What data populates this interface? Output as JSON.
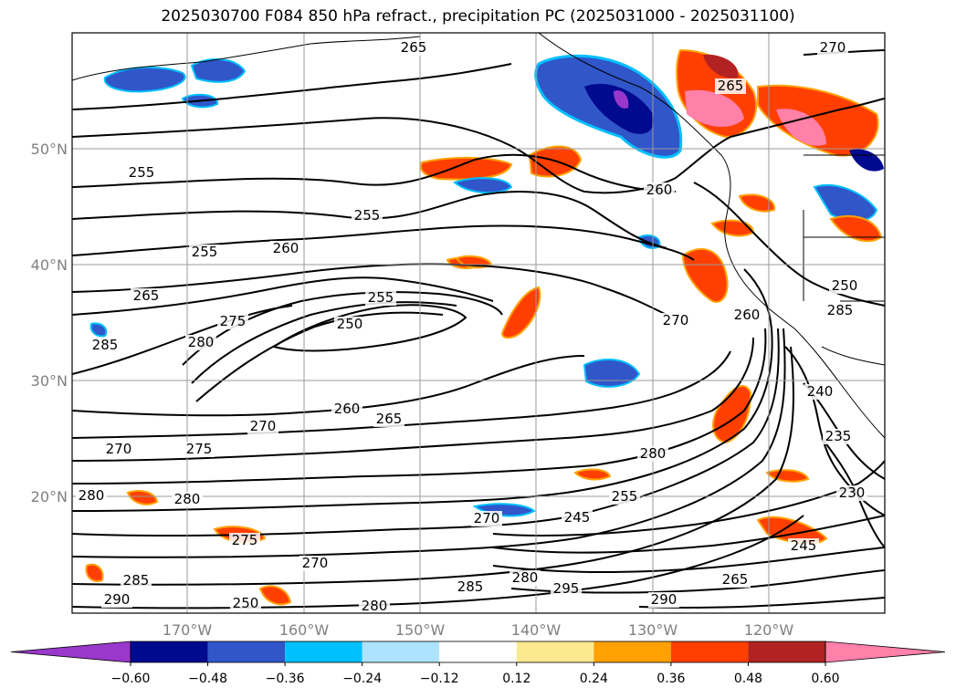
{
  "title": "2025030700 F084 850 hPa refract., precipitation PC (2025031000 - 2025031100)",
  "lat_labels": [
    "50°N",
    "40°N",
    "30°N",
    "20°N"
  ],
  "lon_labels": [
    "170°W",
    "160°W",
    "150°W",
    "140°W",
    "130°W",
    "120°W"
  ],
  "contour_labels": [
    "265",
    "270",
    "265",
    "260",
    "255",
    "255",
    "260",
    "265",
    "255",
    "280",
    "275",
    "250",
    "285",
    "260",
    "265",
    "270",
    "275",
    "270",
    "280",
    "280",
    "280",
    "275",
    "270",
    "245",
    "255",
    "280",
    "285",
    "270",
    "285",
    "295",
    "290",
    "290",
    "265",
    "245",
    "230",
    "235",
    "240",
    "250",
    "260",
    "270",
    "250",
    "280",
    "285",
    "255"
  ],
  "colorbar": {
    "ticks": [
      "−0.60",
      "−0.48",
      "−0.36",
      "−0.24",
      "−0.12",
      "0.12",
      "0.24",
      "0.36",
      "0.48",
      "0.60"
    ],
    "colors": [
      "#9a38cc",
      "#000a8f",
      "#3056c9",
      "#00bfff",
      "#aee3ff",
      "#ffffff",
      "#fde98f",
      "#ffa100",
      "#ff3f00",
      "#b22222",
      "#ff80a8"
    ]
  }
}
